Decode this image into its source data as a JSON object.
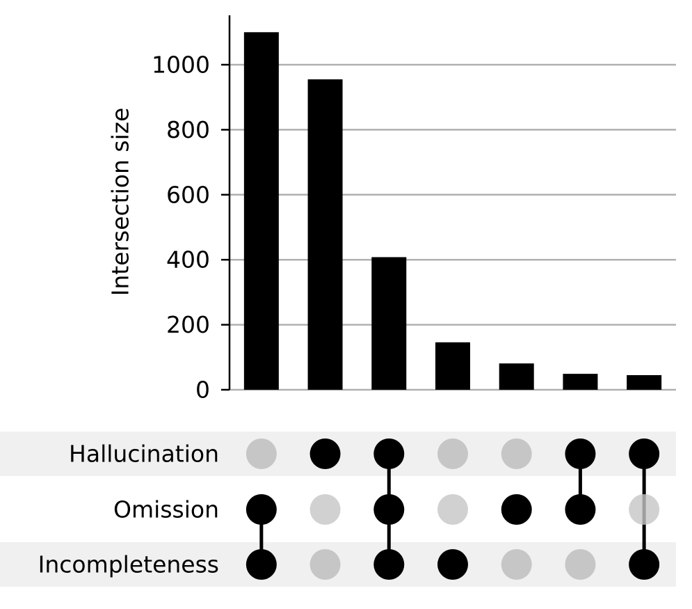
{
  "chart_data": {
    "type": "upset",
    "ylabel": "Intersection size",
    "sets": [
      "Hallucination",
      "Omission",
      "Incompleteness"
    ],
    "values": [
      1100,
      955,
      408,
      146,
      81,
      49,
      45
    ],
    "matrix": [
      [
        0,
        1,
        1
      ],
      [
        1,
        0,
        0
      ],
      [
        1,
        1,
        1
      ],
      [
        0,
        0,
        1
      ],
      [
        0,
        1,
        0
      ],
      [
        1,
        1,
        0
      ],
      [
        1,
        0,
        1
      ]
    ],
    "ylim": [
      0,
      1152
    ],
    "yticks": [
      0,
      200,
      400,
      600,
      800,
      1000
    ],
    "grid": true,
    "color": "#000000",
    "inactive_color": "#c6c6c6",
    "band_color": "#f0f0f0"
  }
}
